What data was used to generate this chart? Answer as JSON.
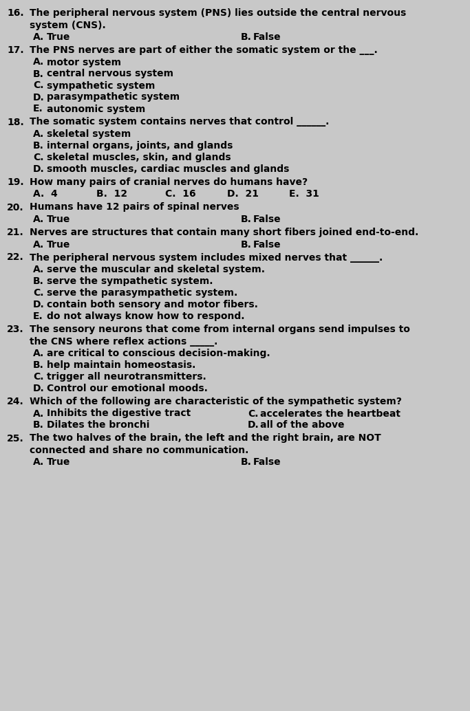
{
  "bg_color": "#c8c8c8",
  "text_color": "#000000",
  "font_size": 10.0,
  "questions": [
    {
      "num": "16.",
      "text": "The peripheral nervous system (PNS) lies outside the central nervous\nsystem (CNS).",
      "type": "tf",
      "answers": [
        {
          "label": "A.",
          "text": "True"
        },
        {
          "label": "B.",
          "text": "False"
        }
      ]
    },
    {
      "num": "17.",
      "text": "The PNS nerves are part of either the somatic system or the ___.",
      "type": "list",
      "answers": [
        {
          "label": "A.",
          "text": "motor system"
        },
        {
          "label": "B.",
          "text": "central nervous system"
        },
        {
          "label": "C.",
          "text": "sympathetic system"
        },
        {
          "label": "D.",
          "text": "parasympathetic system"
        },
        {
          "label": "E.",
          "text": "autonomic system"
        }
      ]
    },
    {
      "num": "18.",
      "text": "The somatic system contains nerves that control ______.",
      "type": "list",
      "answers": [
        {
          "label": "A.",
          "text": "skeletal system"
        },
        {
          "label": "B.",
          "text": "internal organs, joints, and glands"
        },
        {
          "label": "C.",
          "text": "skeletal muscles, skin, and glands"
        },
        {
          "label": "D.",
          "text": "smooth muscles, cardiac muscles and glands"
        }
      ]
    },
    {
      "num": "19.",
      "text": "How many pairs of cranial nerves do humans have?",
      "type": "fivecol",
      "answers": [
        {
          "label": "A.",
          "text": "4"
        },
        {
          "label": "B.",
          "text": "12"
        },
        {
          "label": "C.",
          "text": "16"
        },
        {
          "label": "D.",
          "text": "21"
        },
        {
          "label": "E.",
          "text": "31"
        }
      ]
    },
    {
      "num": "20.",
      "text": "Humans have 12 pairs of spinal nerves",
      "type": "tf",
      "answers": [
        {
          "label": "A.",
          "text": "True"
        },
        {
          "label": "B.",
          "text": "False"
        }
      ]
    },
    {
      "num": "21.",
      "text": "Nerves are structures that contain many short fibers joined end-to-end.",
      "type": "tf",
      "answers": [
        {
          "label": "A.",
          "text": "True"
        },
        {
          "label": "B.",
          "text": "False"
        }
      ]
    },
    {
      "num": "22.",
      "text": "The peripheral nervous system includes mixed nerves that ______.",
      "type": "list",
      "answers": [
        {
          "label": "A.",
          "text": "serve the muscular and skeletal system."
        },
        {
          "label": "B.",
          "text": "serve the sympathetic system."
        },
        {
          "label": "C.",
          "text": "serve the parasympathetic system."
        },
        {
          "label": "D.",
          "text": "contain both sensory and motor fibers."
        },
        {
          "label": "E.",
          "text": "do not always know how to respond."
        }
      ]
    },
    {
      "num": "23.",
      "text": "The sensory neurons that come from internal organs send impulses to\nthe CNS where reflex actions _____.",
      "type": "list",
      "answers": [
        {
          "label": "A.",
          "text": "are critical to conscious decision-making."
        },
        {
          "label": "B.",
          "text": "help maintain homeostasis."
        },
        {
          "label": "C.",
          "text": "trigger all neurotransmitters."
        },
        {
          "label": "D.",
          "text": "Control our emotional moods."
        }
      ]
    },
    {
      "num": "24.",
      "text": "Which of the following are characteristic of the sympathetic system?",
      "type": "paired",
      "answers": [
        {
          "label": "A.",
          "text": "Inhibits the digestive tract",
          "label2": "C.",
          "text2": "accelerates the heartbeat"
        },
        {
          "label": "B.",
          "text": "Dilates the bronchi",
          "label2": "D.",
          "text2": "all of the above"
        }
      ]
    },
    {
      "num": "25.",
      "text": "The two halves of the brain, the left and the right brain, are NOT\nconnected and share no communication.",
      "type": "tf",
      "answers": [
        {
          "label": "A.",
          "text": "True"
        },
        {
          "label": "B.",
          "text": "False"
        }
      ]
    }
  ]
}
